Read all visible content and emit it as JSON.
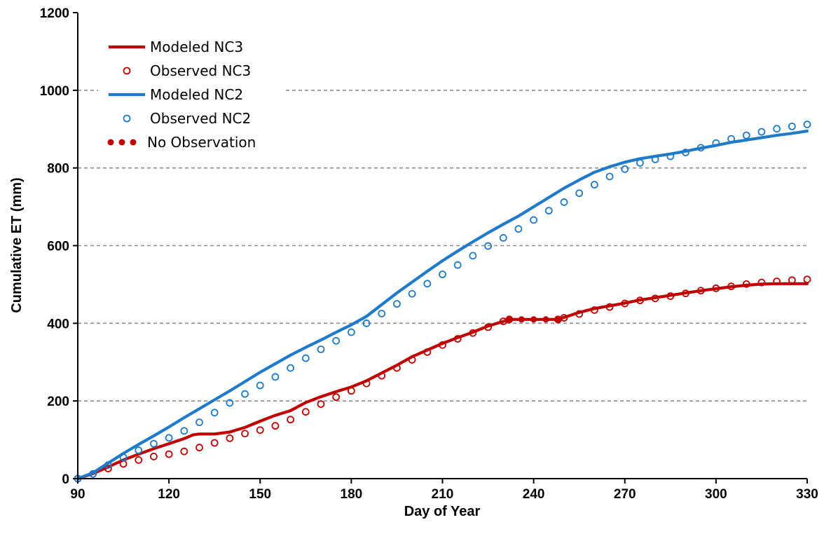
{
  "chart_data": {
    "type": "line",
    "title": "",
    "xlabel": "Day of Year",
    "ylabel": "Cumulative ET (mm)",
    "xlim": [
      90,
      330
    ],
    "ylim": [
      0,
      1200
    ],
    "xticks": [
      90,
      120,
      150,
      180,
      210,
      240,
      270,
      300,
      330
    ],
    "yticks": [
      0,
      200,
      400,
      600,
      800,
      1000,
      1200
    ],
    "grid": "horizontal-dashed",
    "legend_position": "top-left",
    "colors": {
      "nc3": "#C00000",
      "nc2": "#1F7AC9"
    },
    "series": [
      {
        "name": "Modeled NC3",
        "style": "line",
        "color": "#C00000",
        "x": [
          90,
          95,
          100,
          105,
          110,
          115,
          120,
          125,
          128,
          130,
          135,
          140,
          145,
          150,
          155,
          160,
          165,
          170,
          175,
          180,
          185,
          190,
          195,
          200,
          205,
          210,
          215,
          220,
          225,
          230,
          232,
          248,
          250,
          255,
          260,
          265,
          270,
          275,
          280,
          285,
          290,
          295,
          300,
          305,
          310,
          315,
          320,
          325,
          330
        ],
        "y": [
          0,
          13,
          30,
          48,
          63,
          77,
          90,
          103,
          113,
          115,
          115,
          120,
          132,
          148,
          163,
          175,
          196,
          211,
          224,
          236,
          252,
          272,
          292,
          314,
          331,
          348,
          363,
          377,
          393,
          405,
          410,
          410,
          415,
          428,
          438,
          445,
          452,
          460,
          466,
          472,
          478,
          484,
          489,
          494,
          498,
          501,
          502,
          502,
          502
        ]
      },
      {
        "name": "Observed NC3",
        "style": "markers",
        "color": "#C00000",
        "x": [
          90,
          95,
          100,
          105,
          110,
          115,
          120,
          125,
          130,
          135,
          140,
          145,
          150,
          155,
          160,
          165,
          170,
          175,
          180,
          185,
          190,
          195,
          200,
          205,
          210,
          215,
          220,
          225,
          230,
          232,
          248,
          250,
          255,
          260,
          265,
          270,
          275,
          280,
          285,
          290,
          295,
          300,
          305,
          310,
          315,
          320,
          325,
          330
        ],
        "y": [
          0,
          12,
          26,
          38,
          48,
          57,
          63,
          70,
          80,
          92,
          104,
          116,
          125,
          136,
          152,
          172,
          192,
          210,
          226,
          245,
          265,
          285,
          306,
          326,
          344,
          360,
          375,
          390,
          405,
          410,
          410,
          414,
          424,
          434,
          442,
          451,
          459,
          464,
          470,
          477,
          484,
          490,
          495,
          501,
          505,
          508,
          511,
          513
        ]
      },
      {
        "name": "Modeled NC2",
        "style": "line",
        "color": "#1F7AC9",
        "x": [
          90,
          95,
          100,
          105,
          110,
          115,
          120,
          125,
          130,
          135,
          140,
          145,
          150,
          155,
          160,
          165,
          170,
          175,
          180,
          185,
          190,
          195,
          200,
          205,
          210,
          215,
          220,
          225,
          230,
          235,
          240,
          245,
          250,
          255,
          260,
          265,
          270,
          275,
          280,
          285,
          290,
          295,
          300,
          305,
          310,
          315,
          320,
          325,
          330
        ],
        "y": [
          0,
          15,
          40,
          65,
          88,
          110,
          133,
          157,
          180,
          203,
          226,
          250,
          274,
          296,
          318,
          338,
          357,
          377,
          396,
          418,
          448,
          478,
          506,
          534,
          561,
          586,
          610,
          633,
          655,
          676,
          700,
          724,
          748,
          769,
          789,
          803,
          815,
          824,
          830,
          836,
          843,
          851,
          858,
          866,
          872,
          878,
          884,
          889,
          895
        ]
      },
      {
        "name": "Observed NC2",
        "style": "markers",
        "color": "#1F7AC9",
        "x": [
          90,
          95,
          100,
          105,
          110,
          115,
          120,
          125,
          130,
          135,
          140,
          145,
          150,
          155,
          160,
          165,
          170,
          175,
          180,
          185,
          190,
          195,
          200,
          205,
          210,
          215,
          220,
          225,
          230,
          235,
          240,
          245,
          250,
          255,
          260,
          265,
          270,
          275,
          280,
          285,
          290,
          295,
          300,
          305,
          310,
          315,
          320,
          325,
          330
        ],
        "y": [
          0,
          12,
          35,
          55,
          73,
          90,
          105,
          123,
          145,
          170,
          195,
          218,
          240,
          262,
          285,
          310,
          333,
          355,
          377,
          400,
          425,
          450,
          476,
          502,
          526,
          550,
          574,
          599,
          620,
          643,
          666,
          690,
          712,
          735,
          757,
          778,
          797,
          813,
          822,
          830,
          840,
          852,
          864,
          875,
          884,
          893,
          901,
          907,
          912
        ]
      },
      {
        "name": "No Observation",
        "style": "dots",
        "color": "#C00000",
        "x": [
          232,
          236,
          240,
          244,
          248
        ],
        "y": [
          410,
          410,
          410,
          410,
          410
        ]
      }
    ]
  }
}
